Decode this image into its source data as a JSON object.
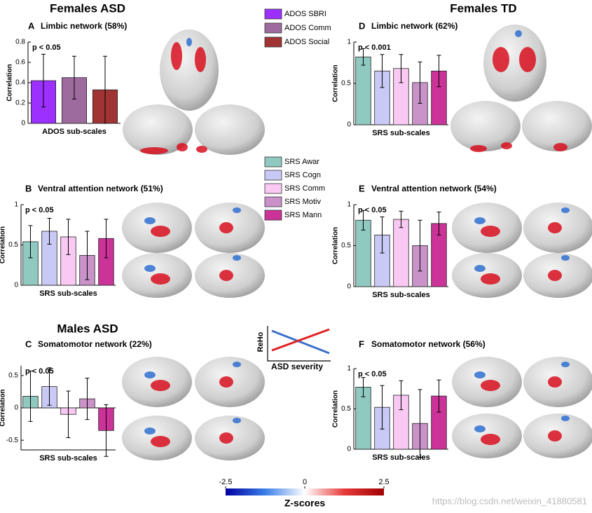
{
  "headings": [
    "Females ASD",
    "Females TD",
    "Males ASD"
  ],
  "legends": [
    {
      "items": [
        {
          "name": "ADOS SBRI",
          "color": "#9b30ff"
        },
        {
          "name": "ADOS Comm",
          "color": "#9e6b9e"
        },
        {
          "name": "ADOS Social",
          "color": "#a03434"
        }
      ]
    },
    {
      "items": [
        {
          "name": "SRS Awar",
          "color": "#8fc9c0"
        },
        {
          "name": "SRS Cogn",
          "color": "#c9c9f5"
        },
        {
          "name": "SRS Comm",
          "color": "#f9c9f3"
        },
        {
          "name": "SRS Motiv",
          "color": "#c993c9"
        },
        {
          "name": "SRS Mann",
          "color": "#cc3399"
        }
      ]
    }
  ],
  "chart_data": [
    {
      "type": "bar",
      "panel": "A",
      "title": "Limbic network (58%)",
      "xlabel": "ADOS sub-scales",
      "ylabel": "Correlation",
      "annotation": "p < 0.05",
      "legend": 0,
      "values": [
        0.42,
        0.45,
        0.33
      ],
      "errors": [
        0.26,
        0.21,
        0.33
      ],
      "ylim": [
        0,
        0.8
      ],
      "yticks": [
        0,
        0.2,
        0.4,
        0.6,
        0.8
      ]
    },
    {
      "type": "bar",
      "panel": "B",
      "title": "Ventral attention network (51%)",
      "xlabel": "SRS sub-scales",
      "ylabel": "Correlation",
      "annotation": "p < 0.05",
      "legend": 1,
      "values": [
        0.54,
        0.67,
        0.6,
        0.37,
        0.58
      ],
      "errors": [
        0.2,
        0.16,
        0.22,
        0.3,
        0.24
      ],
      "ylim": [
        0,
        1
      ],
      "yticks": [
        0,
        0.5,
        1
      ]
    },
    {
      "type": "bar",
      "panel": "C",
      "title": "Somatomotor network (22%)",
      "xlabel": "SRS sub-scales",
      "ylabel": "Correlation",
      "annotation": "p < 0.05",
      "legend": 1,
      "values": [
        0.18,
        0.33,
        -0.1,
        0.14,
        -0.35
      ],
      "errors": [
        0.39,
        0.29,
        0.36,
        0.32,
        0.4
      ],
      "ylim": [
        -0.65,
        0.65
      ],
      "yticks": [
        -0.5,
        0,
        0.5
      ]
    },
    {
      "type": "bar",
      "panel": "D",
      "title": "Limbic network (62%)",
      "xlabel": "SRS sub-scales",
      "ylabel": "Correlation",
      "annotation": "p < 0.001",
      "legend": 1,
      "values": [
        0.82,
        0.65,
        0.68,
        0.51,
        0.65
      ],
      "errors": [
        0.1,
        0.2,
        0.17,
        0.25,
        0.19
      ],
      "ylim": [
        0,
        1
      ],
      "yticks": [
        0,
        0.5,
        1
      ]
    },
    {
      "type": "bar",
      "panel": "E",
      "title": "Ventral attention network (54%)",
      "xlabel": "SRS sub-scales",
      "ylabel": "Correlation",
      "annotation": "p < 0.05",
      "legend": 1,
      "values": [
        0.81,
        0.63,
        0.82,
        0.5,
        0.77
      ],
      "errors": [
        0.12,
        0.22,
        0.1,
        0.31,
        0.14
      ],
      "ylim": [
        0,
        1
      ],
      "yticks": [
        0,
        0.5,
        1
      ]
    },
    {
      "type": "bar",
      "panel": "F",
      "title": "Somatomotor network (56%)",
      "xlabel": "SRS sub-scales",
      "ylabel": "Correlation",
      "annotation": "p < 0.05",
      "legend": 1,
      "values": [
        0.77,
        0.52,
        0.67,
        0.32,
        0.66
      ],
      "errors": [
        0.12,
        0.27,
        0.18,
        0.42,
        0.2
      ],
      "ylim": [
        0,
        1
      ],
      "yticks": [
        0,
        0.5,
        1
      ]
    }
  ],
  "inset": {
    "ylabel": "ReHo",
    "xlabel": "ASD severity"
  },
  "colorbar": {
    "label": "Z-scores",
    "lim": [
      -2.5,
      2.5
    ],
    "ticks": [
      -2.5,
      0,
      2.5
    ]
  },
  "watermark": "https://blog.csdn.net/weixin_41880581"
}
